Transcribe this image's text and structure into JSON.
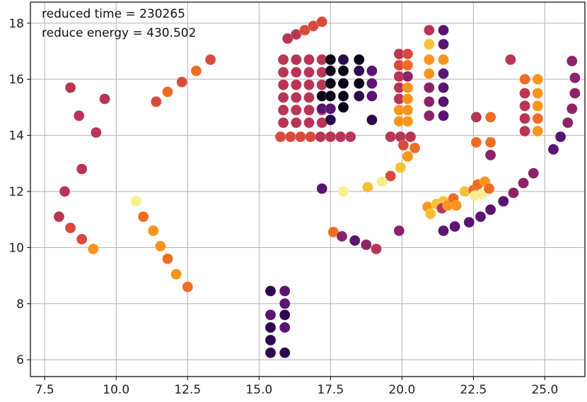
{
  "chart_data": {
    "type": "scatter",
    "title": "",
    "xlabel": "",
    "ylabel": "",
    "xlim": [
      7.0,
      26.4
    ],
    "ylim": [
      5.4,
      18.75
    ],
    "grid": true,
    "colormap": "inferno",
    "x_ticks": [
      7.5,
      10.0,
      12.5,
      15.0,
      17.5,
      20.0,
      22.5,
      25.0
    ],
    "x_tick_labels": [
      "7.5",
      "10.0",
      "12.5",
      "15.0",
      "17.5",
      "20.0",
      "22.5",
      "25.0"
    ],
    "y_ticks": [
      6,
      8,
      10,
      12,
      14,
      16,
      18
    ],
    "y_tick_labels": [
      "6",
      "8",
      "10",
      "12",
      "14",
      "16",
      "18"
    ],
    "annotations": [
      "reduced time = 230265",
      "reduce energy = 430.502"
    ],
    "palette": {
      "black": "#0a0616",
      "dark_purple": "#2d0a4f",
      "purple": "#5a1471",
      "magenta": "#8c2369",
      "crimson": "#b83556",
      "red": "#d94a3c",
      "orange": "#ef6c23",
      "amber": "#f9951a",
      "yellow": "#f7c136",
      "pale_yellow": "#f8ee8f"
    },
    "points": [
      {
        "x": 8.4,
        "y": 15.7,
        "c": "crimson"
      },
      {
        "x": 8.7,
        "y": 14.7,
        "c": "crimson"
      },
      {
        "x": 9.3,
        "y": 14.1,
        "c": "crimson"
      },
      {
        "x": 9.6,
        "y": 15.3,
        "c": "crimson"
      },
      {
        "x": 8.8,
        "y": 12.8,
        "c": "crimson"
      },
      {
        "x": 8.2,
        "y": 12.0,
        "c": "crimson"
      },
      {
        "x": 8.0,
        "y": 11.1,
        "c": "crimson"
      },
      {
        "x": 8.4,
        "y": 10.7,
        "c": "red"
      },
      {
        "x": 8.8,
        "y": 10.3,
        "c": "red"
      },
      {
        "x": 9.2,
        "y": 9.95,
        "c": "amber"
      },
      {
        "x": 10.7,
        "y": 11.65,
        "c": "pale_yellow"
      },
      {
        "x": 10.95,
        "y": 11.1,
        "c": "orange"
      },
      {
        "x": 11.3,
        "y": 10.6,
        "c": "amber"
      },
      {
        "x": 11.55,
        "y": 10.05,
        "c": "amber"
      },
      {
        "x": 11.8,
        "y": 9.6,
        "c": "orange"
      },
      {
        "x": 12.1,
        "y": 9.05,
        "c": "amber"
      },
      {
        "x": 12.5,
        "y": 8.6,
        "c": "orange"
      },
      {
        "x": 11.4,
        "y": 15.2,
        "c": "red"
      },
      {
        "x": 11.8,
        "y": 15.55,
        "c": "orange"
      },
      {
        "x": 12.3,
        "y": 15.9,
        "c": "red"
      },
      {
        "x": 12.8,
        "y": 16.3,
        "c": "orange"
      },
      {
        "x": 13.3,
        "y": 16.7,
        "c": "red"
      },
      {
        "x": 16.0,
        "y": 17.45,
        "c": "crimson"
      },
      {
        "x": 16.3,
        "y": 17.6,
        "c": "crimson"
      },
      {
        "x": 16.6,
        "y": 17.75,
        "c": "red"
      },
      {
        "x": 16.9,
        "y": 17.9,
        "c": "red"
      },
      {
        "x": 17.2,
        "y": 18.05,
        "c": "red"
      },
      {
        "x": 15.85,
        "y": 16.7,
        "c": "crimson"
      },
      {
        "x": 16.3,
        "y": 16.7,
        "c": "crimson"
      },
      {
        "x": 16.75,
        "y": 16.7,
        "c": "crimson"
      },
      {
        "x": 17.2,
        "y": 16.7,
        "c": "crimson"
      },
      {
        "x": 15.85,
        "y": 16.25,
        "c": "crimson"
      },
      {
        "x": 16.3,
        "y": 16.25,
        "c": "crimson"
      },
      {
        "x": 16.75,
        "y": 16.25,
        "c": "crimson"
      },
      {
        "x": 17.2,
        "y": 16.25,
        "c": "crimson"
      },
      {
        "x": 15.85,
        "y": 15.8,
        "c": "crimson"
      },
      {
        "x": 16.3,
        "y": 15.8,
        "c": "crimson"
      },
      {
        "x": 16.75,
        "y": 15.8,
        "c": "crimson"
      },
      {
        "x": 17.2,
        "y": 15.8,
        "c": "crimson"
      },
      {
        "x": 15.85,
        "y": 15.35,
        "c": "crimson"
      },
      {
        "x": 16.3,
        "y": 15.35,
        "c": "crimson"
      },
      {
        "x": 16.75,
        "y": 15.35,
        "c": "crimson"
      },
      {
        "x": 15.85,
        "y": 14.9,
        "c": "crimson"
      },
      {
        "x": 16.3,
        "y": 14.9,
        "c": "crimson"
      },
      {
        "x": 16.75,
        "y": 14.9,
        "c": "crimson"
      },
      {
        "x": 17.2,
        "y": 14.9,
        "c": "crimson"
      },
      {
        "x": 15.85,
        "y": 14.45,
        "c": "crimson"
      },
      {
        "x": 16.3,
        "y": 14.45,
        "c": "crimson"
      },
      {
        "x": 16.75,
        "y": 14.45,
        "c": "crimson"
      },
      {
        "x": 17.2,
        "y": 14.45,
        "c": "crimson"
      },
      {
        "x": 15.75,
        "y": 13.95,
        "c": "red"
      },
      {
        "x": 16.1,
        "y": 13.95,
        "c": "red"
      },
      {
        "x": 16.45,
        "y": 13.95,
        "c": "red"
      },
      {
        "x": 16.8,
        "y": 13.95,
        "c": "red"
      },
      {
        "x": 17.15,
        "y": 13.95,
        "c": "crimson"
      },
      {
        "x": 17.5,
        "y": 13.95,
        "c": "crimson"
      },
      {
        "x": 17.85,
        "y": 13.95,
        "c": "crimson"
      },
      {
        "x": 18.2,
        "y": 13.95,
        "c": "crimson"
      },
      {
        "x": 17.2,
        "y": 15.4,
        "c": "black"
      },
      {
        "x": 17.5,
        "y": 16.7,
        "c": "black"
      },
      {
        "x": 17.5,
        "y": 16.3,
        "c": "black"
      },
      {
        "x": 17.5,
        "y": 15.85,
        "c": "black"
      },
      {
        "x": 17.5,
        "y": 15.4,
        "c": "black"
      },
      {
        "x": 17.95,
        "y": 16.7,
        "c": "dark_purple"
      },
      {
        "x": 17.95,
        "y": 16.3,
        "c": "black"
      },
      {
        "x": 17.95,
        "y": 15.85,
        "c": "black"
      },
      {
        "x": 17.95,
        "y": 15.4,
        "c": "black"
      },
      {
        "x": 17.95,
        "y": 15.0,
        "c": "black"
      },
      {
        "x": 18.5,
        "y": 16.7,
        "c": "black"
      },
      {
        "x": 18.5,
        "y": 16.3,
        "c": "dark_purple"
      },
      {
        "x": 18.5,
        "y": 15.85,
        "c": "black"
      },
      {
        "x": 18.5,
        "y": 15.4,
        "c": "dark_purple"
      },
      {
        "x": 18.95,
        "y": 16.3,
        "c": "purple"
      },
      {
        "x": 18.95,
        "y": 15.85,
        "c": "purple"
      },
      {
        "x": 18.95,
        "y": 15.4,
        "c": "purple"
      },
      {
        "x": 18.95,
        "y": 14.55,
        "c": "dark_purple"
      },
      {
        "x": 17.2,
        "y": 14.95,
        "c": "purple"
      },
      {
        "x": 17.5,
        "y": 14.95,
        "c": "purple"
      },
      {
        "x": 17.5,
        "y": 14.55,
        "c": "dark_purple"
      },
      {
        "x": 19.9,
        "y": 16.9,
        "c": "crimson"
      },
      {
        "x": 19.9,
        "y": 16.5,
        "c": "red"
      },
      {
        "x": 19.9,
        "y": 16.1,
        "c": "crimson"
      },
      {
        "x": 19.9,
        "y": 15.7,
        "c": "crimson"
      },
      {
        "x": 19.9,
        "y": 15.3,
        "c": "crimson"
      },
      {
        "x": 19.9,
        "y": 14.9,
        "c": "amber"
      },
      {
        "x": 19.9,
        "y": 14.5,
        "c": "amber"
      },
      {
        "x": 20.2,
        "y": 16.9,
        "c": "red"
      },
      {
        "x": 20.2,
        "y": 16.5,
        "c": "orange"
      },
      {
        "x": 20.2,
        "y": 16.1,
        "c": "magenta"
      },
      {
        "x": 20.2,
        "y": 15.7,
        "c": "amber"
      },
      {
        "x": 20.2,
        "y": 15.3,
        "c": "amber"
      },
      {
        "x": 20.2,
        "y": 14.9,
        "c": "amber"
      },
      {
        "x": 20.2,
        "y": 14.5,
        "c": "amber"
      },
      {
        "x": 19.6,
        "y": 13.95,
        "c": "crimson"
      },
      {
        "x": 19.95,
        "y": 13.95,
        "c": "crimson"
      },
      {
        "x": 20.3,
        "y": 13.95,
        "c": "crimson"
      },
      {
        "x": 20.05,
        "y": 13.65,
        "c": "red"
      },
      {
        "x": 20.45,
        "y": 13.55,
        "c": "orange"
      },
      {
        "x": 20.2,
        "y": 13.25,
        "c": "amber"
      },
      {
        "x": 19.95,
        "y": 12.85,
        "c": "yellow"
      },
      {
        "x": 19.6,
        "y": 12.55,
        "c": "red"
      },
      {
        "x": 19.3,
        "y": 12.35,
        "c": "pale_yellow"
      },
      {
        "x": 18.8,
        "y": 12.15,
        "c": "yellow"
      },
      {
        "x": 17.95,
        "y": 12.0,
        "c": "pale_yellow"
      },
      {
        "x": 17.2,
        "y": 12.1,
        "c": "purple"
      },
      {
        "x": 17.6,
        "y": 10.55,
        "c": "orange"
      },
      {
        "x": 17.9,
        "y": 10.4,
        "c": "magenta"
      },
      {
        "x": 18.35,
        "y": 10.25,
        "c": "purple"
      },
      {
        "x": 18.75,
        "y": 10.1,
        "c": "magenta"
      },
      {
        "x": 19.1,
        "y": 9.95,
        "c": "crimson"
      },
      {
        "x": 19.9,
        "y": 10.6,
        "c": "magenta"
      },
      {
        "x": 20.95,
        "y": 17.75,
        "c": "crimson"
      },
      {
        "x": 20.95,
        "y": 17.25,
        "c": "yellow"
      },
      {
        "x": 20.95,
        "y": 16.7,
        "c": "amber"
      },
      {
        "x": 20.95,
        "y": 16.2,
        "c": "amber"
      },
      {
        "x": 20.95,
        "y": 15.7,
        "c": "magenta"
      },
      {
        "x": 20.95,
        "y": 15.2,
        "c": "magenta"
      },
      {
        "x": 20.95,
        "y": 14.7,
        "c": "magenta"
      },
      {
        "x": 21.45,
        "y": 17.75,
        "c": "purple"
      },
      {
        "x": 21.45,
        "y": 17.25,
        "c": "purple"
      },
      {
        "x": 21.45,
        "y": 16.7,
        "c": "amber"
      },
      {
        "x": 21.45,
        "y": 16.2,
        "c": "purple"
      },
      {
        "x": 21.45,
        "y": 15.7,
        "c": "purple"
      },
      {
        "x": 21.45,
        "y": 15.2,
        "c": "purple"
      },
      {
        "x": 21.45,
        "y": 14.7,
        "c": "purple"
      },
      {
        "x": 22.6,
        "y": 14.65,
        "c": "crimson"
      },
      {
        "x": 23.1,
        "y": 14.65,
        "c": "orange"
      },
      {
        "x": 22.6,
        "y": 13.75,
        "c": "orange"
      },
      {
        "x": 23.1,
        "y": 13.75,
        "c": "orange"
      },
      {
        "x": 23.1,
        "y": 13.3,
        "c": "magenta"
      },
      {
        "x": 20.9,
        "y": 11.45,
        "c": "amber"
      },
      {
        "x": 21.0,
        "y": 11.2,
        "c": "yellow"
      },
      {
        "x": 21.2,
        "y": 11.55,
        "c": "yellow"
      },
      {
        "x": 21.45,
        "y": 11.65,
        "c": "yellow"
      },
      {
        "x": 21.4,
        "y": 11.4,
        "c": "crimson"
      },
      {
        "x": 21.6,
        "y": 11.5,
        "c": "amber"
      },
      {
        "x": 21.8,
        "y": 11.75,
        "c": "orange"
      },
      {
        "x": 21.9,
        "y": 11.5,
        "c": "amber"
      },
      {
        "x": 22.2,
        "y": 12.0,
        "c": "yellow"
      },
      {
        "x": 22.5,
        "y": 12.05,
        "c": "orange"
      },
      {
        "x": 22.55,
        "y": 11.85,
        "c": "pale_yellow"
      },
      {
        "x": 22.8,
        "y": 11.9,
        "c": "pale_yellow"
      },
      {
        "x": 22.65,
        "y": 12.25,
        "c": "orange"
      },
      {
        "x": 22.9,
        "y": 12.35,
        "c": "amber"
      },
      {
        "x": 23.05,
        "y": 12.1,
        "c": "orange"
      },
      {
        "x": 23.8,
        "y": 16.7,
        "c": "crimson"
      },
      {
        "x": 24.3,
        "y": 16.0,
        "c": "orange"
      },
      {
        "x": 24.3,
        "y": 15.5,
        "c": "crimson"
      },
      {
        "x": 24.3,
        "y": 15.05,
        "c": "crimson"
      },
      {
        "x": 24.3,
        "y": 14.6,
        "c": "crimson"
      },
      {
        "x": 24.3,
        "y": 14.15,
        "c": "crimson"
      },
      {
        "x": 24.75,
        "y": 16.0,
        "c": "amber"
      },
      {
        "x": 24.75,
        "y": 15.5,
        "c": "amber"
      },
      {
        "x": 24.75,
        "y": 15.05,
        "c": "amber"
      },
      {
        "x": 24.75,
        "y": 14.6,
        "c": "orange"
      },
      {
        "x": 24.75,
        "y": 14.15,
        "c": "amber"
      },
      {
        "x": 21.45,
        "y": 10.6,
        "c": "purple"
      },
      {
        "x": 21.85,
        "y": 10.75,
        "c": "purple"
      },
      {
        "x": 22.35,
        "y": 10.9,
        "c": "purple"
      },
      {
        "x": 22.75,
        "y": 11.1,
        "c": "purple"
      },
      {
        "x": 23.1,
        "y": 11.35,
        "c": "purple"
      },
      {
        "x": 23.55,
        "y": 11.65,
        "c": "purple"
      },
      {
        "x": 23.9,
        "y": 11.95,
        "c": "magenta"
      },
      {
        "x": 24.25,
        "y": 12.3,
        "c": "magenta"
      },
      {
        "x": 24.6,
        "y": 12.65,
        "c": "magenta"
      },
      {
        "x": 25.3,
        "y": 13.5,
        "c": "purple"
      },
      {
        "x": 25.55,
        "y": 13.95,
        "c": "purple"
      },
      {
        "x": 25.8,
        "y": 14.45,
        "c": "magenta"
      },
      {
        "x": 25.95,
        "y": 14.95,
        "c": "magenta"
      },
      {
        "x": 26.05,
        "y": 15.5,
        "c": "magenta"
      },
      {
        "x": 26.05,
        "y": 16.05,
        "c": "magenta"
      },
      {
        "x": 25.95,
        "y": 16.65,
        "c": "magenta"
      },
      {
        "x": 15.4,
        "y": 8.45,
        "c": "dark_purple"
      },
      {
        "x": 15.9,
        "y": 8.45,
        "c": "purple"
      },
      {
        "x": 15.9,
        "y": 8.0,
        "c": "purple"
      },
      {
        "x": 15.4,
        "y": 7.6,
        "c": "purple"
      },
      {
        "x": 15.9,
        "y": 7.6,
        "c": "dark_purple"
      },
      {
        "x": 15.4,
        "y": 7.15,
        "c": "dark_purple"
      },
      {
        "x": 15.9,
        "y": 7.15,
        "c": "purple"
      },
      {
        "x": 15.4,
        "y": 6.7,
        "c": "dark_purple"
      },
      {
        "x": 15.4,
        "y": 6.25,
        "c": "dark_purple"
      },
      {
        "x": 15.9,
        "y": 6.25,
        "c": "dark_purple"
      }
    ]
  }
}
